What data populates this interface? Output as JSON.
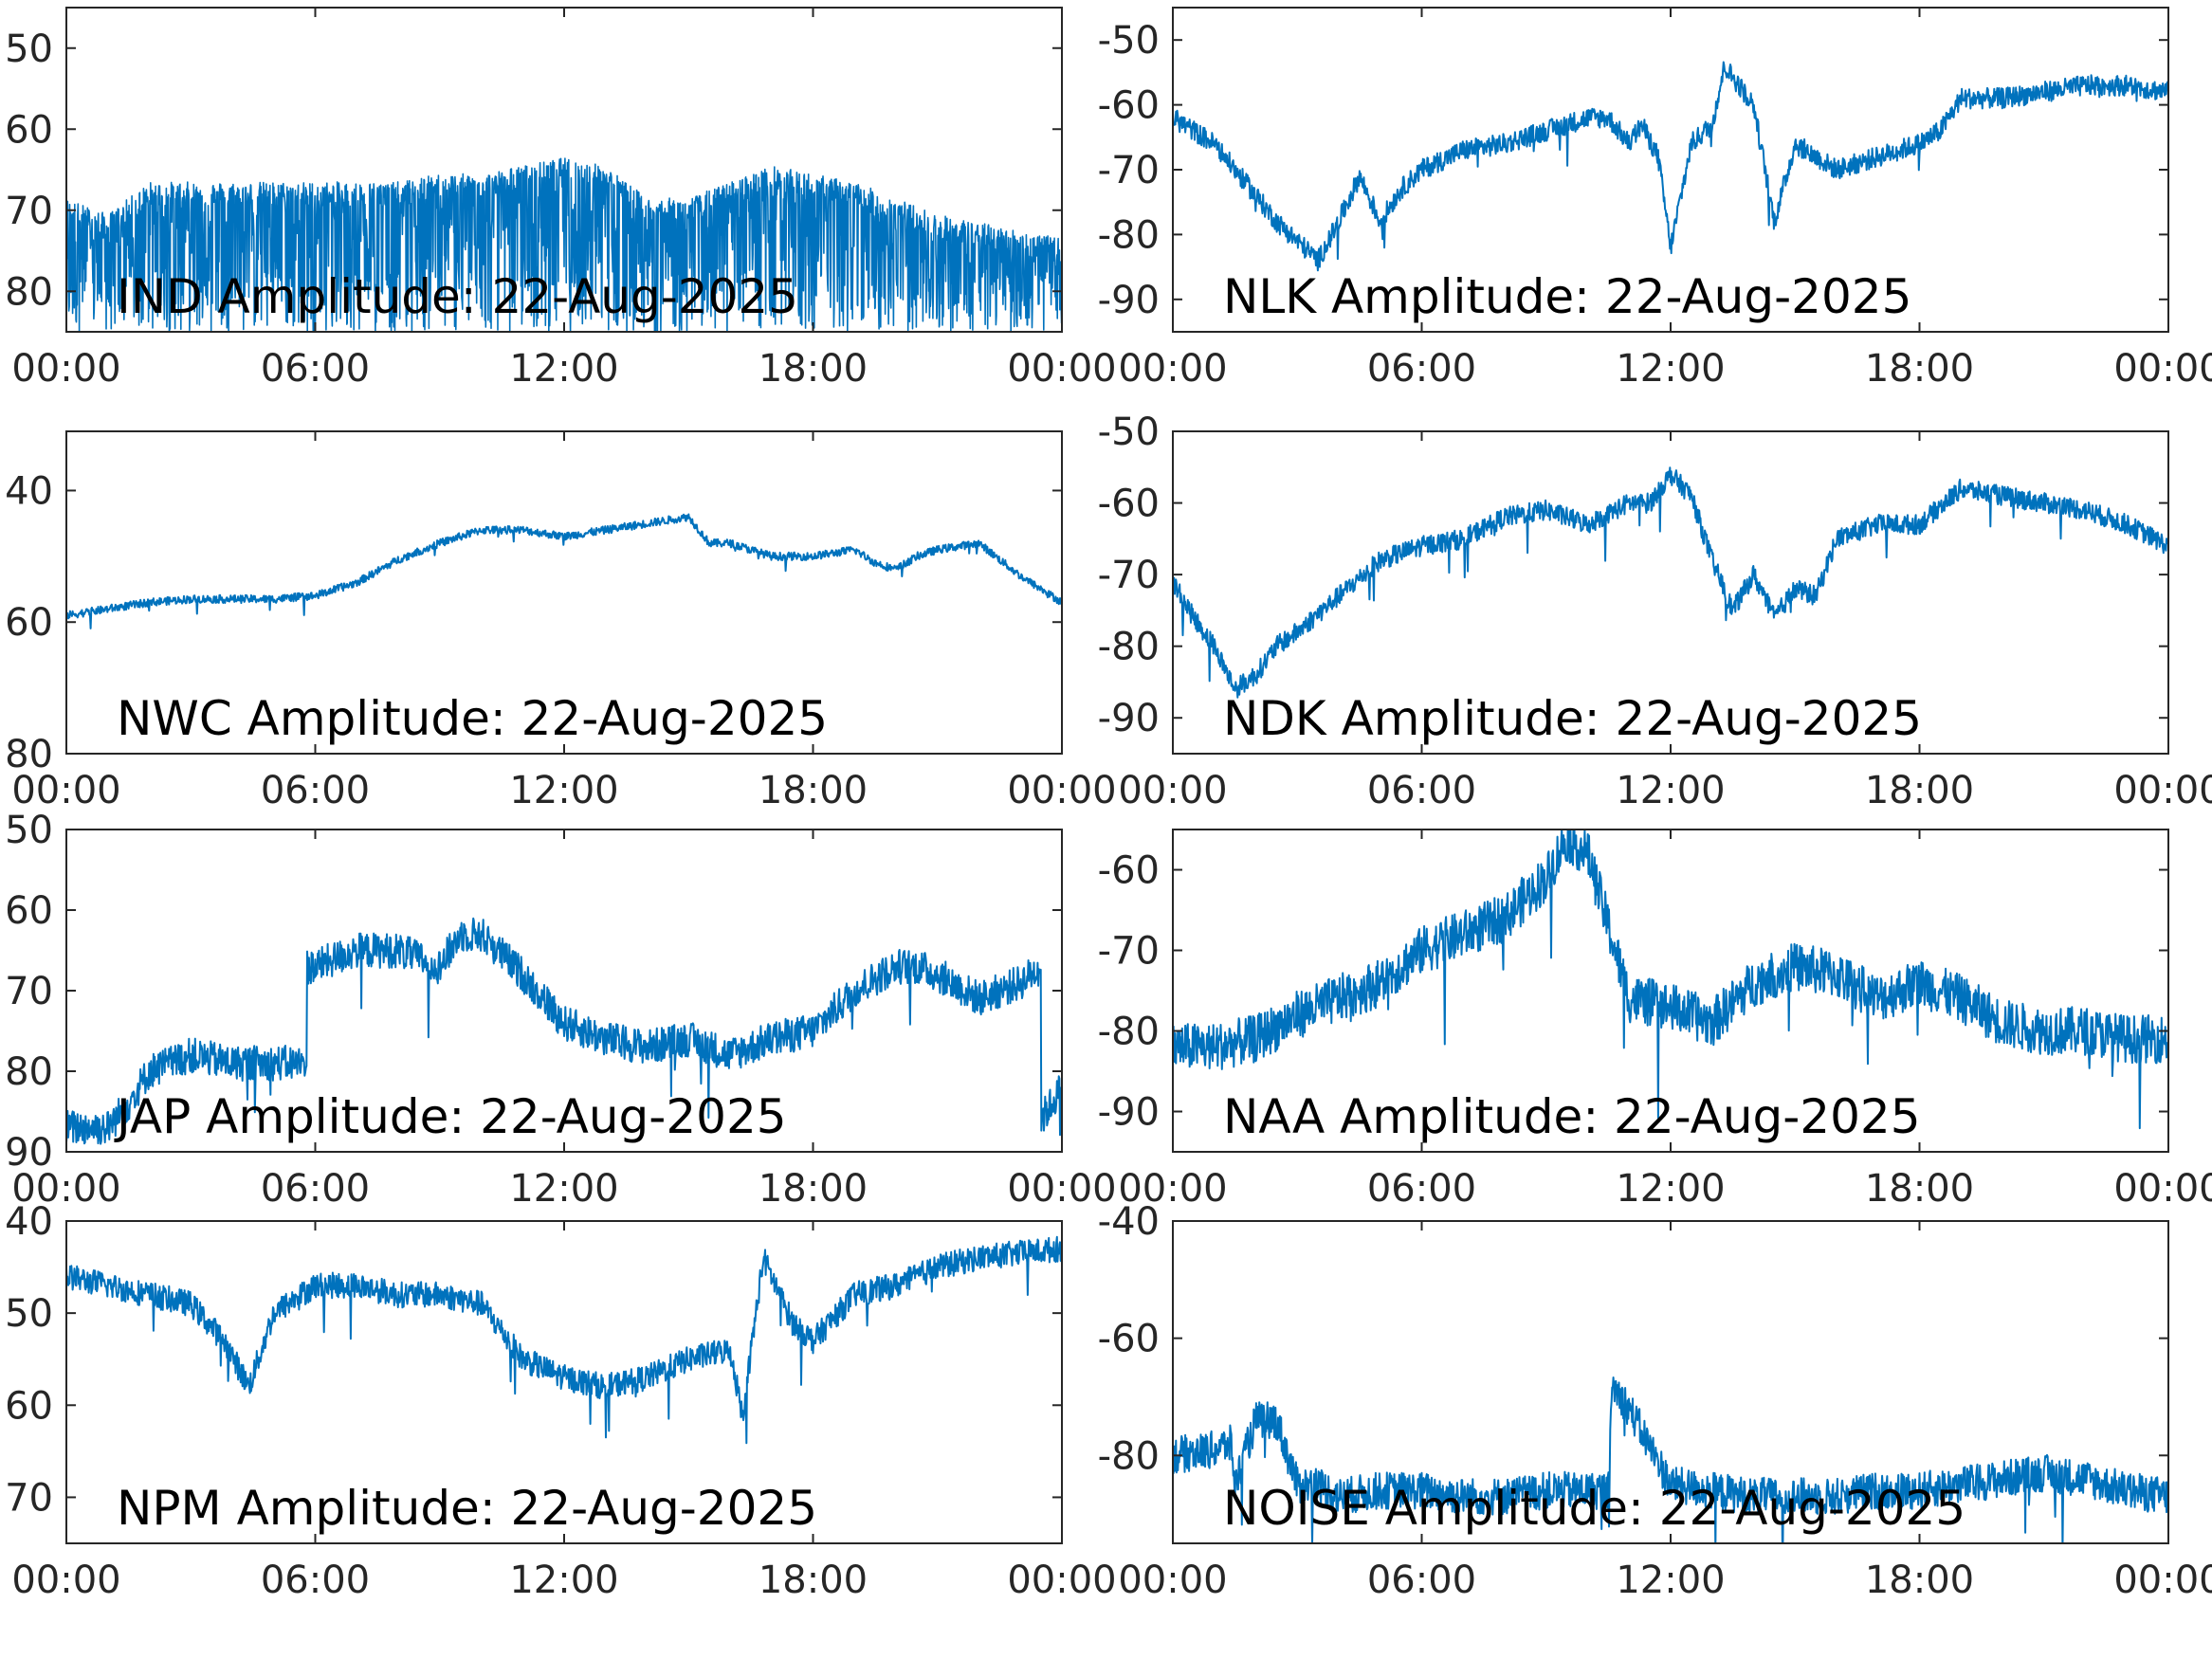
{
  "figure": {
    "line_color": "#0072bd",
    "background": "#ffffff"
  },
  "chart_data": [
    {
      "type": "line",
      "title": "IND Amplitude: 22-Aug-2025",
      "xlabel": "",
      "ylabel": "",
      "xticks": [
        "00:00",
        "06:00",
        "12:00",
        "18:00",
        "00:00"
      ],
      "xlim": [
        0,
        24
      ],
      "yticks": [
        -50,
        -60,
        -70,
        -80
      ],
      "ytick_labels": [
        "50",
        "60",
        "70",
        "80"
      ],
      "ylim": [
        -85,
        -45
      ],
      "grid": false,
      "series": [
        {
          "x": [
            0,
            1,
            2,
            3,
            4,
            5,
            6,
            7,
            8,
            9,
            10,
            11,
            12,
            13,
            14,
            15,
            16,
            17,
            18,
            19,
            20,
            21,
            22,
            23,
            24
          ],
          "upper": [
            -70,
            -72,
            -68,
            -68,
            -68,
            -68,
            -68,
            -68,
            -68,
            -67,
            -67,
            -66,
            -65,
            -66,
            -70,
            -70,
            -68,
            -66,
            -67,
            -68,
            -70,
            -72,
            -73,
            -74,
            -75
          ],
          "lower": [
            -85,
            -85,
            -85,
            -85,
            -85,
            -85,
            -85,
            -85,
            -85,
            -85,
            -85,
            -85,
            -85,
            -85,
            -85,
            -85,
            -85,
            -85,
            -85,
            -85,
            -85,
            -85,
            -85,
            -85,
            -85
          ]
        }
      ]
    },
    {
      "type": "line",
      "title": "NLK Amplitude: 22-Aug-2025",
      "xlabel": "",
      "ylabel": "",
      "xticks": [
        "00:00",
        "06:00",
        "12:00",
        "18:00",
        "00:00"
      ],
      "xlim": [
        0,
        24
      ],
      "yticks": [
        -50,
        -60,
        -70,
        -80,
        -90
      ],
      "ytick_labels": [
        "-50",
        "-60",
        "-70",
        "-80",
        "-90"
      ],
      "ylim": [
        -95,
        -45
      ],
      "grid": false,
      "series": [
        {
          "x": [
            0,
            1,
            2,
            2.5,
            3,
            3.5,
            4,
            4.5,
            5,
            5.5,
            6,
            7,
            8,
            9,
            10,
            10.5,
            11,
            11.3,
            11.7,
            12,
            12.5,
            13,
            13.3,
            14,
            14.5,
            15,
            16,
            17,
            18,
            18.5,
            19,
            20,
            21,
            22,
            23,
            24
          ],
          "y": [
            -62,
            -66,
            -74,
            -78,
            -81,
            -84,
            -78,
            -71,
            -78,
            -73,
            -70,
            -67,
            -66,
            -64,
            -62,
            -62,
            -66,
            -63,
            -68,
            -82,
            -66,
            -63,
            -54,
            -60,
            -78,
            -66,
            -70,
            -68,
            -66,
            -64,
            -59,
            -59,
            -58,
            -57,
            -57,
            -58
          ]
        }
      ]
    },
    {
      "type": "line",
      "title": "NWC Amplitude: 22-Aug-2025",
      "xlabel": "",
      "ylabel": "",
      "xticks": [
        "00:00",
        "06:00",
        "12:00",
        "18:00",
        "00:00"
      ],
      "xlim": [
        0,
        24
      ],
      "yticks": [
        -40,
        -60,
        -80
      ],
      "ytick_labels": [
        "40",
        "60",
        "80"
      ],
      "ylim": [
        -80,
        -31
      ],
      "grid": false,
      "series": [
        {
          "x": [
            0,
            1,
            2,
            3,
            4,
            5,
            6,
            7,
            8,
            9,
            10,
            11,
            12,
            13,
            14,
            15,
            15.5,
            16,
            17,
            18,
            19,
            19.5,
            20,
            20.5,
            21,
            22,
            23,
            24
          ],
          "y": [
            -59,
            -58,
            -57,
            -56.5,
            -56.5,
            -56.5,
            -56,
            -54,
            -50.5,
            -48,
            -46,
            -46,
            -47,
            -46,
            -45,
            -44,
            -48,
            -48,
            -50,
            -50,
            -49,
            -51,
            -52,
            -50,
            -49,
            -48,
            -53,
            -57
          ]
        }
      ]
    },
    {
      "type": "line",
      "title": "NDK Amplitude: 22-Aug-2025",
      "xlabel": "",
      "ylabel": "",
      "xticks": [
        "00:00",
        "06:00",
        "12:00",
        "18:00",
        "00:00"
      ],
      "xlim": [
        0,
        24
      ],
      "yticks": [
        -50,
        -60,
        -70,
        -80,
        -90
      ],
      "ytick_labels": [
        "-50",
        "-60",
        "-70",
        "-80",
        "-90"
      ],
      "ylim": [
        -95,
        -50
      ],
      "grid": false,
      "series": [
        {
          "x": [
            0,
            0.5,
            1,
            1.5,
            2,
            2.5,
            3,
            4,
            5,
            6,
            7,
            8,
            9,
            10,
            11,
            11.5,
            12,
            12.5,
            13,
            13.5,
            14,
            14.5,
            15,
            15.5,
            16,
            17,
            18,
            19,
            20,
            21,
            22,
            23,
            24
          ],
          "y": [
            -71,
            -76,
            -80,
            -86,
            -84,
            -80,
            -78,
            -73,
            -68,
            -66,
            -65,
            -62,
            -61,
            -63,
            -60,
            -60,
            -56,
            -59,
            -68,
            -75,
            -70,
            -76,
            -72,
            -73,
            -65,
            -63,
            -63,
            -58,
            -59,
            -60,
            -61,
            -63,
            -66
          ]
        }
      ]
    },
    {
      "type": "line",
      "title": "JAP Amplitude: 22-Aug-2025",
      "xlabel": "",
      "ylabel": "",
      "xticks": [
        "00:00",
        "06:00",
        "12:00",
        "18:00",
        "00:00"
      ],
      "xlim": [
        0,
        24
      ],
      "yticks": [
        -50,
        -60,
        -70,
        -80,
        -90
      ],
      "ytick_labels": [
        "50",
        "60",
        "70",
        "80",
        "90"
      ],
      "ylim": [
        -90,
        -50
      ],
      "grid": false,
      "series": [
        {
          "x": [
            0,
            1,
            1.5,
            2,
            3,
            4,
            5,
            5.8,
            5.8,
            6,
            7,
            8,
            9,
            9.5,
            10,
            11,
            12,
            13,
            14,
            15,
            16,
            17,
            18,
            19,
            20,
            20.5,
            21,
            22,
            23,
            23.5,
            23.5,
            24
          ],
          "y": [
            -87,
            -87,
            -84,
            -80,
            -78,
            -79,
            -79,
            -79,
            -67,
            -67,
            -65,
            -65,
            -67,
            -63,
            -63,
            -68,
            -74,
            -76,
            -77,
            -76,
            -78,
            -76,
            -75,
            -70,
            -67,
            -67,
            -68,
            -71,
            -69,
            -67,
            -86,
            -82
          ]
        }
      ]
    },
    {
      "type": "line",
      "title": "NAA Amplitude: 22-Aug-2025",
      "xlabel": "",
      "ylabel": "",
      "xticks": [
        "00:00",
        "06:00",
        "12:00",
        "18:00",
        "00:00"
      ],
      "xlim": [
        0,
        24
      ],
      "yticks": [
        -60,
        -70,
        -80,
        -90
      ],
      "ytick_labels": [
        "-60",
        "-70",
        "-80",
        "-90"
      ],
      "ylim": [
        -95,
        -55
      ],
      "grid": false,
      "series": [
        {
          "x": [
            0,
            1,
            2,
            3,
            4,
            5,
            6,
            7,
            8,
            9,
            9.5,
            10,
            11,
            12,
            13,
            14,
            15,
            16,
            17,
            18,
            19,
            20,
            21,
            22,
            23,
            24
          ],
          "y": [
            -82,
            -82,
            -81,
            -78,
            -76,
            -74,
            -70,
            -68,
            -66,
            -61,
            -56,
            -58,
            -76,
            -77,
            -79,
            -74,
            -72,
            -73,
            -76,
            -74,
            -76,
            -79,
            -80,
            -80,
            -81,
            -81
          ]
        }
      ]
    },
    {
      "type": "line",
      "title": "NPM Amplitude: 22-Aug-2025",
      "xlabel": "",
      "ylabel": "",
      "xticks": [
        "00:00",
        "06:00",
        "12:00",
        "18:00",
        "00:00"
      ],
      "xlim": [
        0,
        24
      ],
      "yticks": [
        -40,
        -50,
        -60,
        -70
      ],
      "ytick_labels": [
        "40",
        "50",
        "60",
        "70"
      ],
      "ylim": [
        -75,
        -40
      ],
      "grid": false,
      "series": [
        {
          "x": [
            0,
            1,
            2,
            3,
            3.8,
            4.4,
            5,
            6,
            7,
            8,
            9,
            10,
            11,
            12,
            13,
            14,
            15,
            16,
            16.3,
            16.8,
            17.5,
            18,
            19,
            20,
            21,
            22,
            23,
            24
          ],
          "y": [
            -46,
            -47,
            -48,
            -49,
            -53,
            -58,
            -50,
            -47,
            -47,
            -48,
            -48,
            -49,
            -55,
            -57,
            -58,
            -57,
            -55,
            -54,
            -61,
            -44,
            -51,
            -53,
            -48,
            -47,
            -45,
            -44,
            -43.5,
            -43
          ]
        }
      ]
    },
    {
      "type": "line",
      "title": "NOISE Amplitude: 22-Aug-2025",
      "xlabel": "",
      "ylabel": "",
      "xticks": [
        "00:00",
        "06:00",
        "12:00",
        "18:00",
        "00:00"
      ],
      "xlim": [
        0,
        24
      ],
      "yticks": [
        -40,
        -60,
        -80
      ],
      "ytick_labels": [
        "-40",
        "-60",
        "-80"
      ],
      "ylim": [
        -95,
        -40
      ],
      "grid": false,
      "series": [
        {
          "x": [
            0,
            1,
            1.4,
            1.5,
            2,
            2.5,
            3,
            3.5,
            4,
            5,
            6,
            7,
            8,
            9,
            10,
            10.5,
            10.6,
            11,
            12,
            13,
            14,
            15,
            16,
            17,
            18,
            19,
            20,
            21,
            22,
            23,
            24
          ],
          "y": [
            -80,
            -79,
            -78,
            -85,
            -74,
            -74,
            -85,
            -85,
            -87,
            -86,
            -86,
            -87,
            -87,
            -86,
            -86,
            -86,
            -68,
            -72,
            -85,
            -86,
            -87,
            -87,
            -87,
            -86,
            -86,
            -85,
            -84,
            -83,
            -84,
            -86,
            -87
          ]
        }
      ]
    }
  ]
}
